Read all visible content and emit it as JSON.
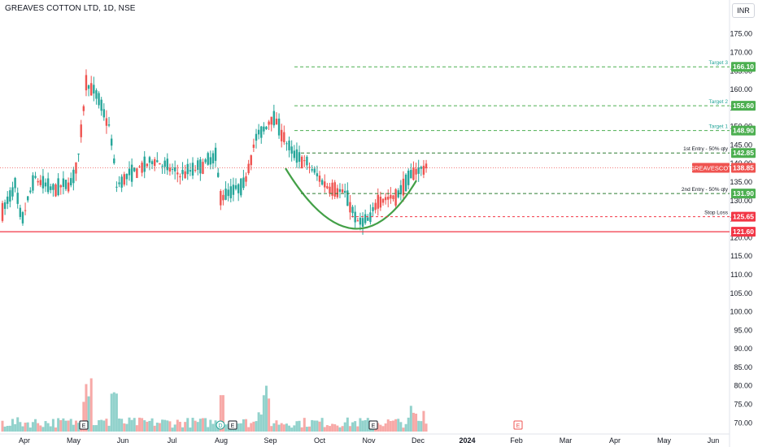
{
  "header": {
    "title": "GREAVES COTTON LTD, 1D, NSE",
    "currency": "INR"
  },
  "colors": {
    "up": "#26a69a",
    "down": "#ef5350",
    "target": "#4caf50",
    "stop": "#f23645",
    "pattern": "#43a047",
    "axis_text": "#131722",
    "grid": "#f0f3fa"
  },
  "chart_data": {
    "type": "candlestick",
    "title": "GREAVES COTTON LTD, 1D, NSE",
    "ylim": [
      67,
      178
    ],
    "y_ticks": [
      70.0,
      75.0,
      80.0,
      85.0,
      90.0,
      95.0,
      100.0,
      105.0,
      110.0,
      115.0,
      120.0,
      125.0,
      130.0,
      135.0,
      140.0,
      145.0,
      150.0,
      155.0,
      160.0,
      165.0,
      170.0,
      175.0
    ],
    "x_labels": [
      "Apr",
      "May",
      "Jun",
      "Jul",
      "Aug",
      "Sep",
      "Oct",
      "Nov",
      "Dec",
      "2024",
      "Feb",
      "Mar",
      "Apr",
      "May",
      "Jun"
    ],
    "last_price": {
      "label": "GREAVESCOT",
      "value": "138.85"
    },
    "levels": [
      {
        "name": "Target 3",
        "value": "166.10",
        "kind": "target"
      },
      {
        "name": "Target 2",
        "value": "155.60",
        "kind": "target"
      },
      {
        "name": "Target 1",
        "value": "148.90",
        "kind": "target"
      },
      {
        "name": "1st Entry - 50% qty",
        "value": "142.85",
        "kind": "entry"
      },
      {
        "name": "2nd Entry - 50% qty",
        "value": "131.90",
        "kind": "entry"
      },
      {
        "name": "Stop Loss",
        "value": "125.65",
        "kind": "stop"
      },
      {
        "name": "",
        "value": "121.60",
        "kind": "support"
      }
    ],
    "event_markers": [
      {
        "label": "E",
        "x_month": "May"
      },
      {
        "label": "D",
        "x_month": "Aug"
      },
      {
        "label": "E",
        "x_month": "Aug"
      },
      {
        "label": "E",
        "x_month": "Nov"
      },
      {
        "label": "E",
        "x_month": "Feb"
      }
    ],
    "price_path": [
      {
        "day": 0,
        "close": 127
      },
      {
        "day": 10,
        "close": 134
      },
      {
        "day": 15,
        "close": 124
      },
      {
        "day": 25,
        "close": 136
      },
      {
        "day": 40,
        "close": 133
      },
      {
        "day": 55,
        "close": 135
      },
      {
        "day": 60,
        "close": 142
      },
      {
        "day": 66,
        "close": 162
      },
      {
        "day": 75,
        "close": 158
      },
      {
        "day": 85,
        "close": 149
      },
      {
        "day": 90,
        "close": 134
      },
      {
        "day": 100,
        "close": 137
      },
      {
        "day": 120,
        "close": 141
      },
      {
        "day": 140,
        "close": 137
      },
      {
        "day": 155,
        "close": 139
      },
      {
        "day": 168,
        "close": 142
      },
      {
        "day": 172,
        "close": 131
      },
      {
        "day": 190,
        "close": 134
      },
      {
        "day": 200,
        "close": 147
      },
      {
        "day": 208,
        "close": 150
      },
      {
        "day": 213,
        "close": 153
      },
      {
        "day": 222,
        "close": 147
      },
      {
        "day": 228,
        "close": 143
      },
      {
        "day": 240,
        "close": 140
      },
      {
        "day": 255,
        "close": 134
      },
      {
        "day": 270,
        "close": 132
      },
      {
        "day": 280,
        "close": 124
      },
      {
        "day": 290,
        "close": 125
      },
      {
        "day": 295,
        "close": 130
      },
      {
        "day": 310,
        "close": 131
      },
      {
        "day": 325,
        "close": 138
      },
      {
        "day": 335,
        "close": 139
      }
    ]
  }
}
